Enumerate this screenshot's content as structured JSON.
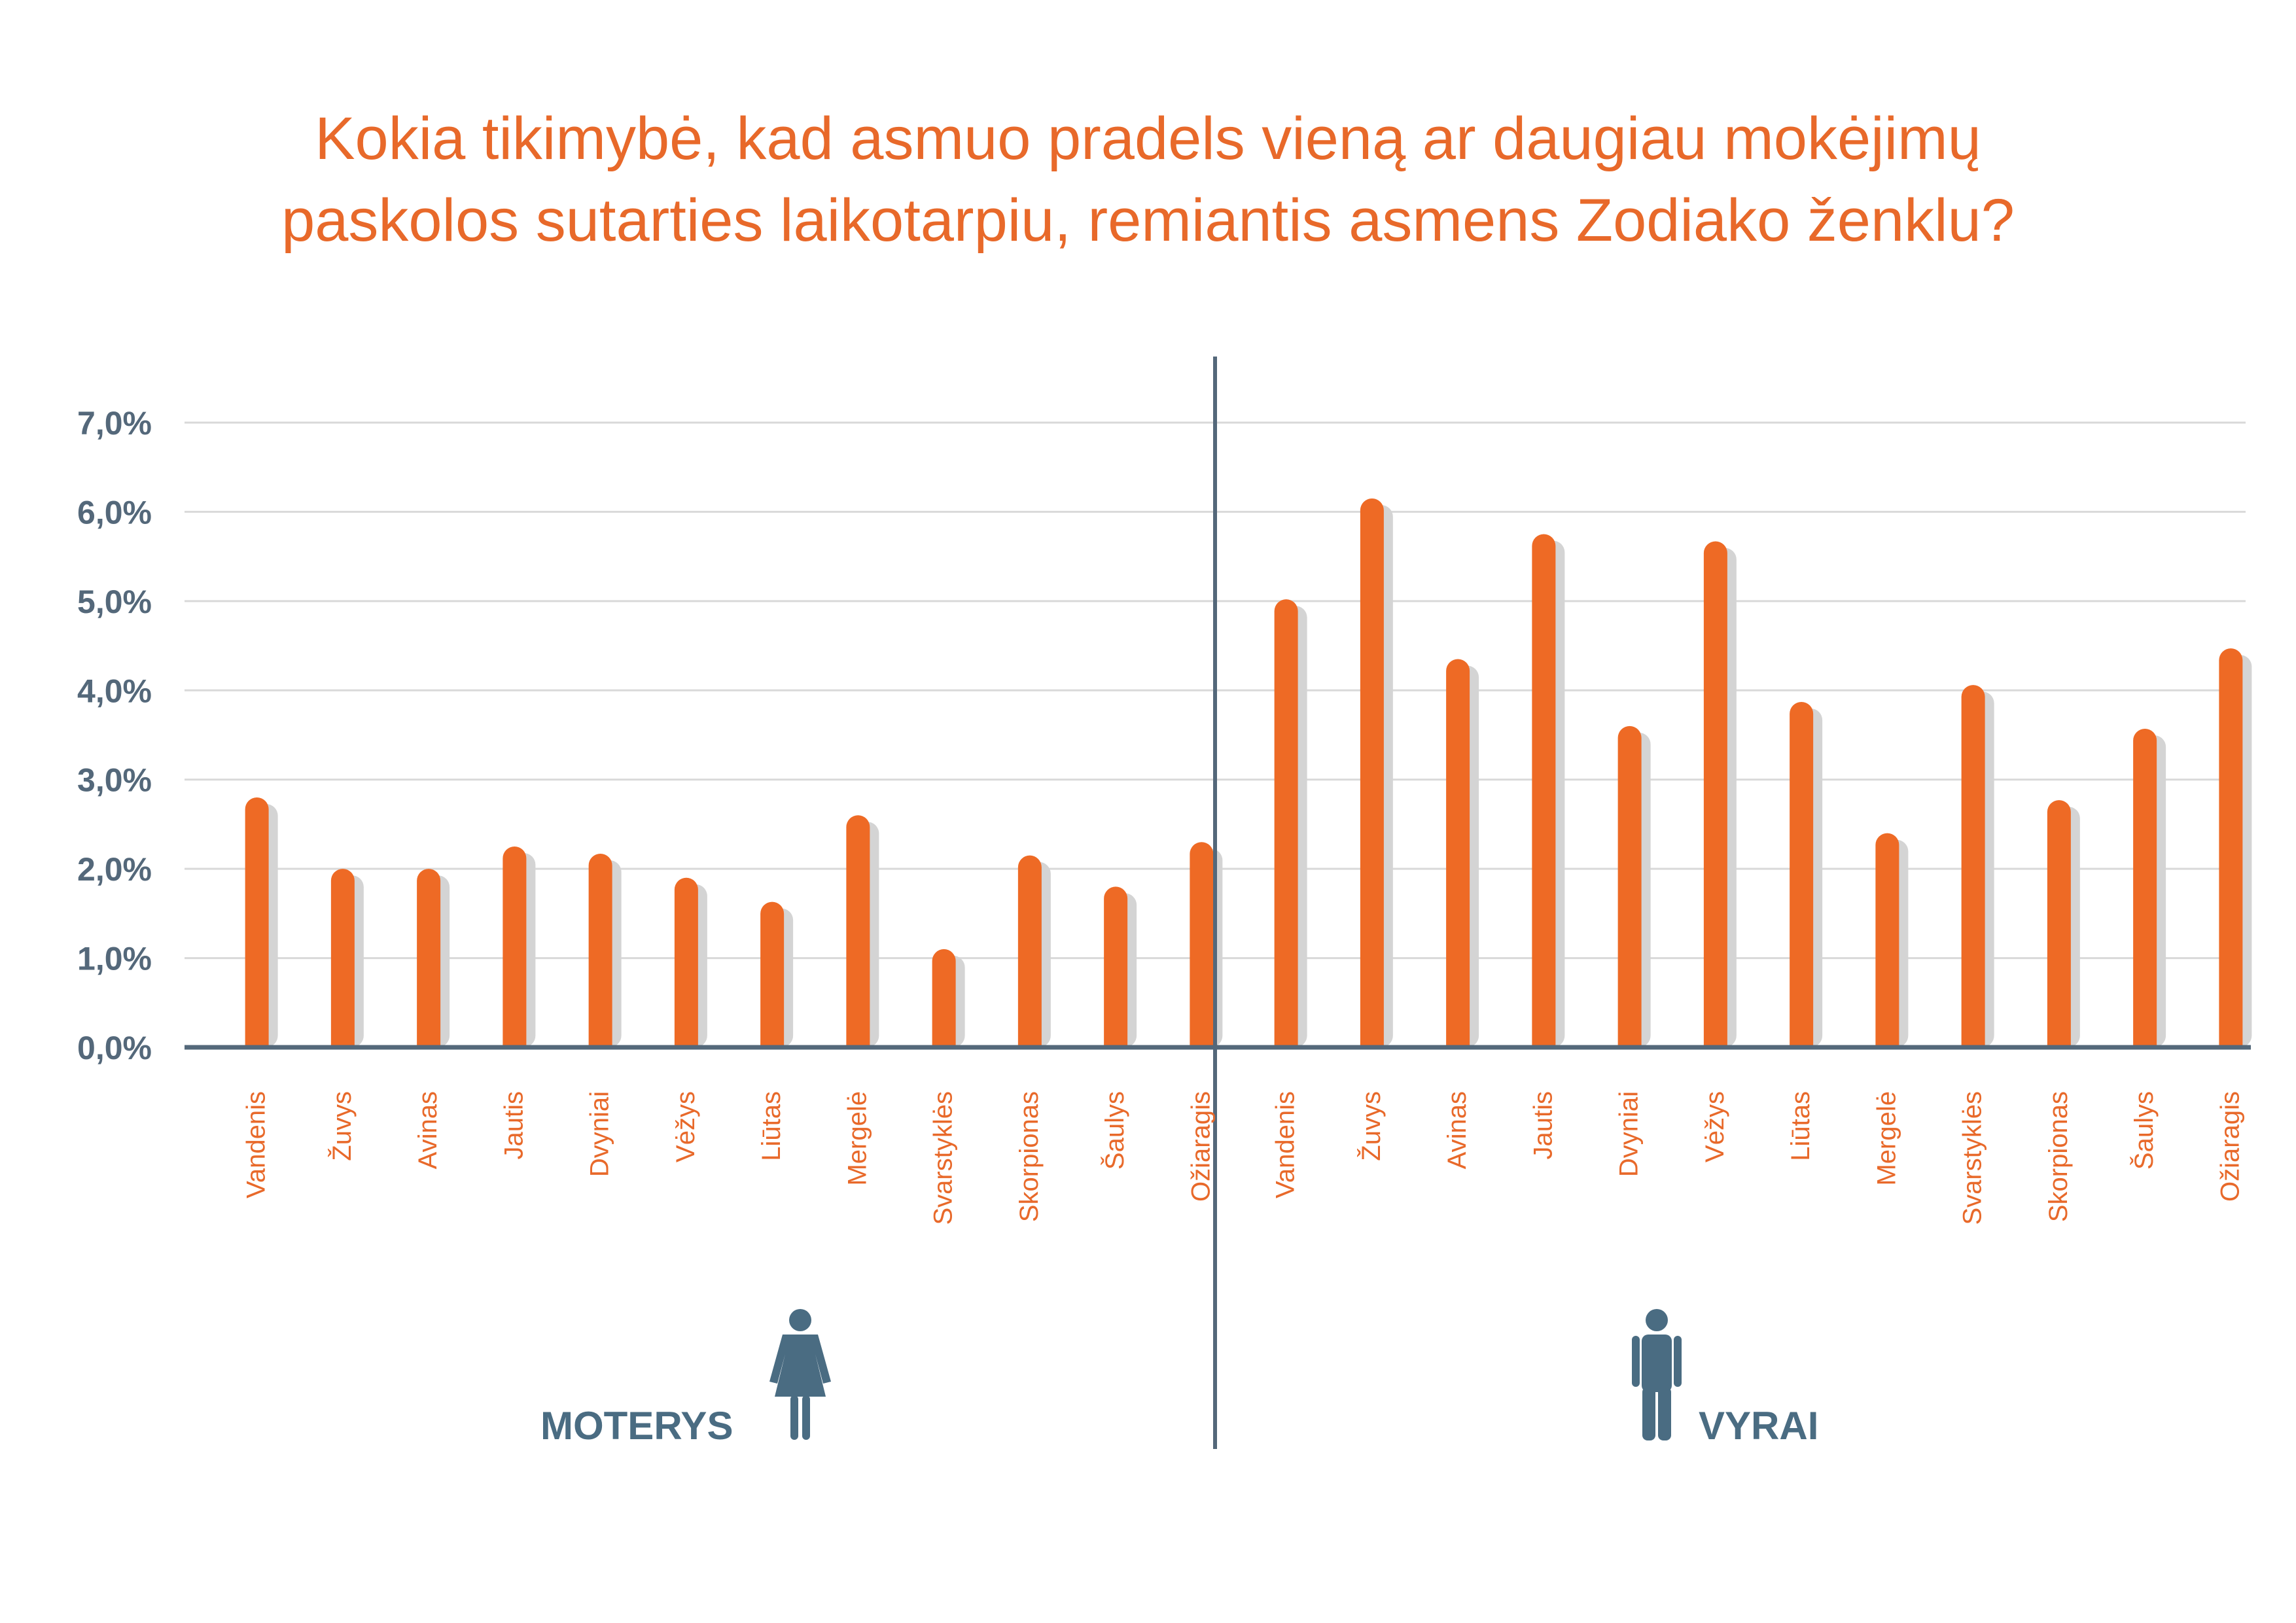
{
  "colors": {
    "title": "#e8692a",
    "bar": "#ee6a25",
    "bar_shadow": "#d4d4d4",
    "axis": "#54687a",
    "grid": "#d9d9d9",
    "category_text": "#e8692a",
    "group_text": "#4a6c82",
    "icon": "#4a6c82"
  },
  "chart_data": {
    "type": "bar",
    "title_lines": [
      "Kokia tikimybė, kad asmuo pradels vieną ar daugiau mokėjimų",
      "paskolos sutarties laikotarpiu, remiantis asmens Zodiako ženklu?"
    ],
    "ylim": [
      0,
      7
    ],
    "y_ticks": [
      "0,0%",
      "1,0%",
      "2,0%",
      "3,0%",
      "4,0%",
      "5,0%",
      "6,0%",
      "7,0%"
    ],
    "grid": true,
    "unit": "%",
    "groups": [
      {
        "label": "MOTERYS",
        "icon": "woman-icon",
        "categories": [
          "Vandenis",
          "Žuvys",
          "Avinas",
          "Jautis",
          "Dvyniai",
          "Vėžys",
          "Liūtas",
          "Mergelė",
          "Svarstyklės",
          "Skorpionas",
          "Šaulys",
          "Ožiaragis"
        ],
        "values": [
          2.8,
          2.0,
          2.0,
          2.25,
          2.17,
          1.9,
          1.63,
          2.6,
          1.1,
          2.15,
          1.8,
          2.3
        ]
      },
      {
        "label": "VYRAI",
        "icon": "man-icon",
        "categories": [
          "Vandenis",
          "Žuvys",
          "Avinas",
          "Jautis",
          "Dvyniai",
          "Vėžys",
          "Liūtas",
          "Mergelė",
          "Svarstyklės",
          "Skorpionas",
          "Šaulys",
          "Ožiaragis"
        ],
        "values": [
          5.02,
          6.15,
          4.35,
          5.75,
          3.6,
          5.67,
          3.87,
          2.4,
          4.06,
          2.77,
          3.57,
          4.47
        ]
      }
    ]
  }
}
